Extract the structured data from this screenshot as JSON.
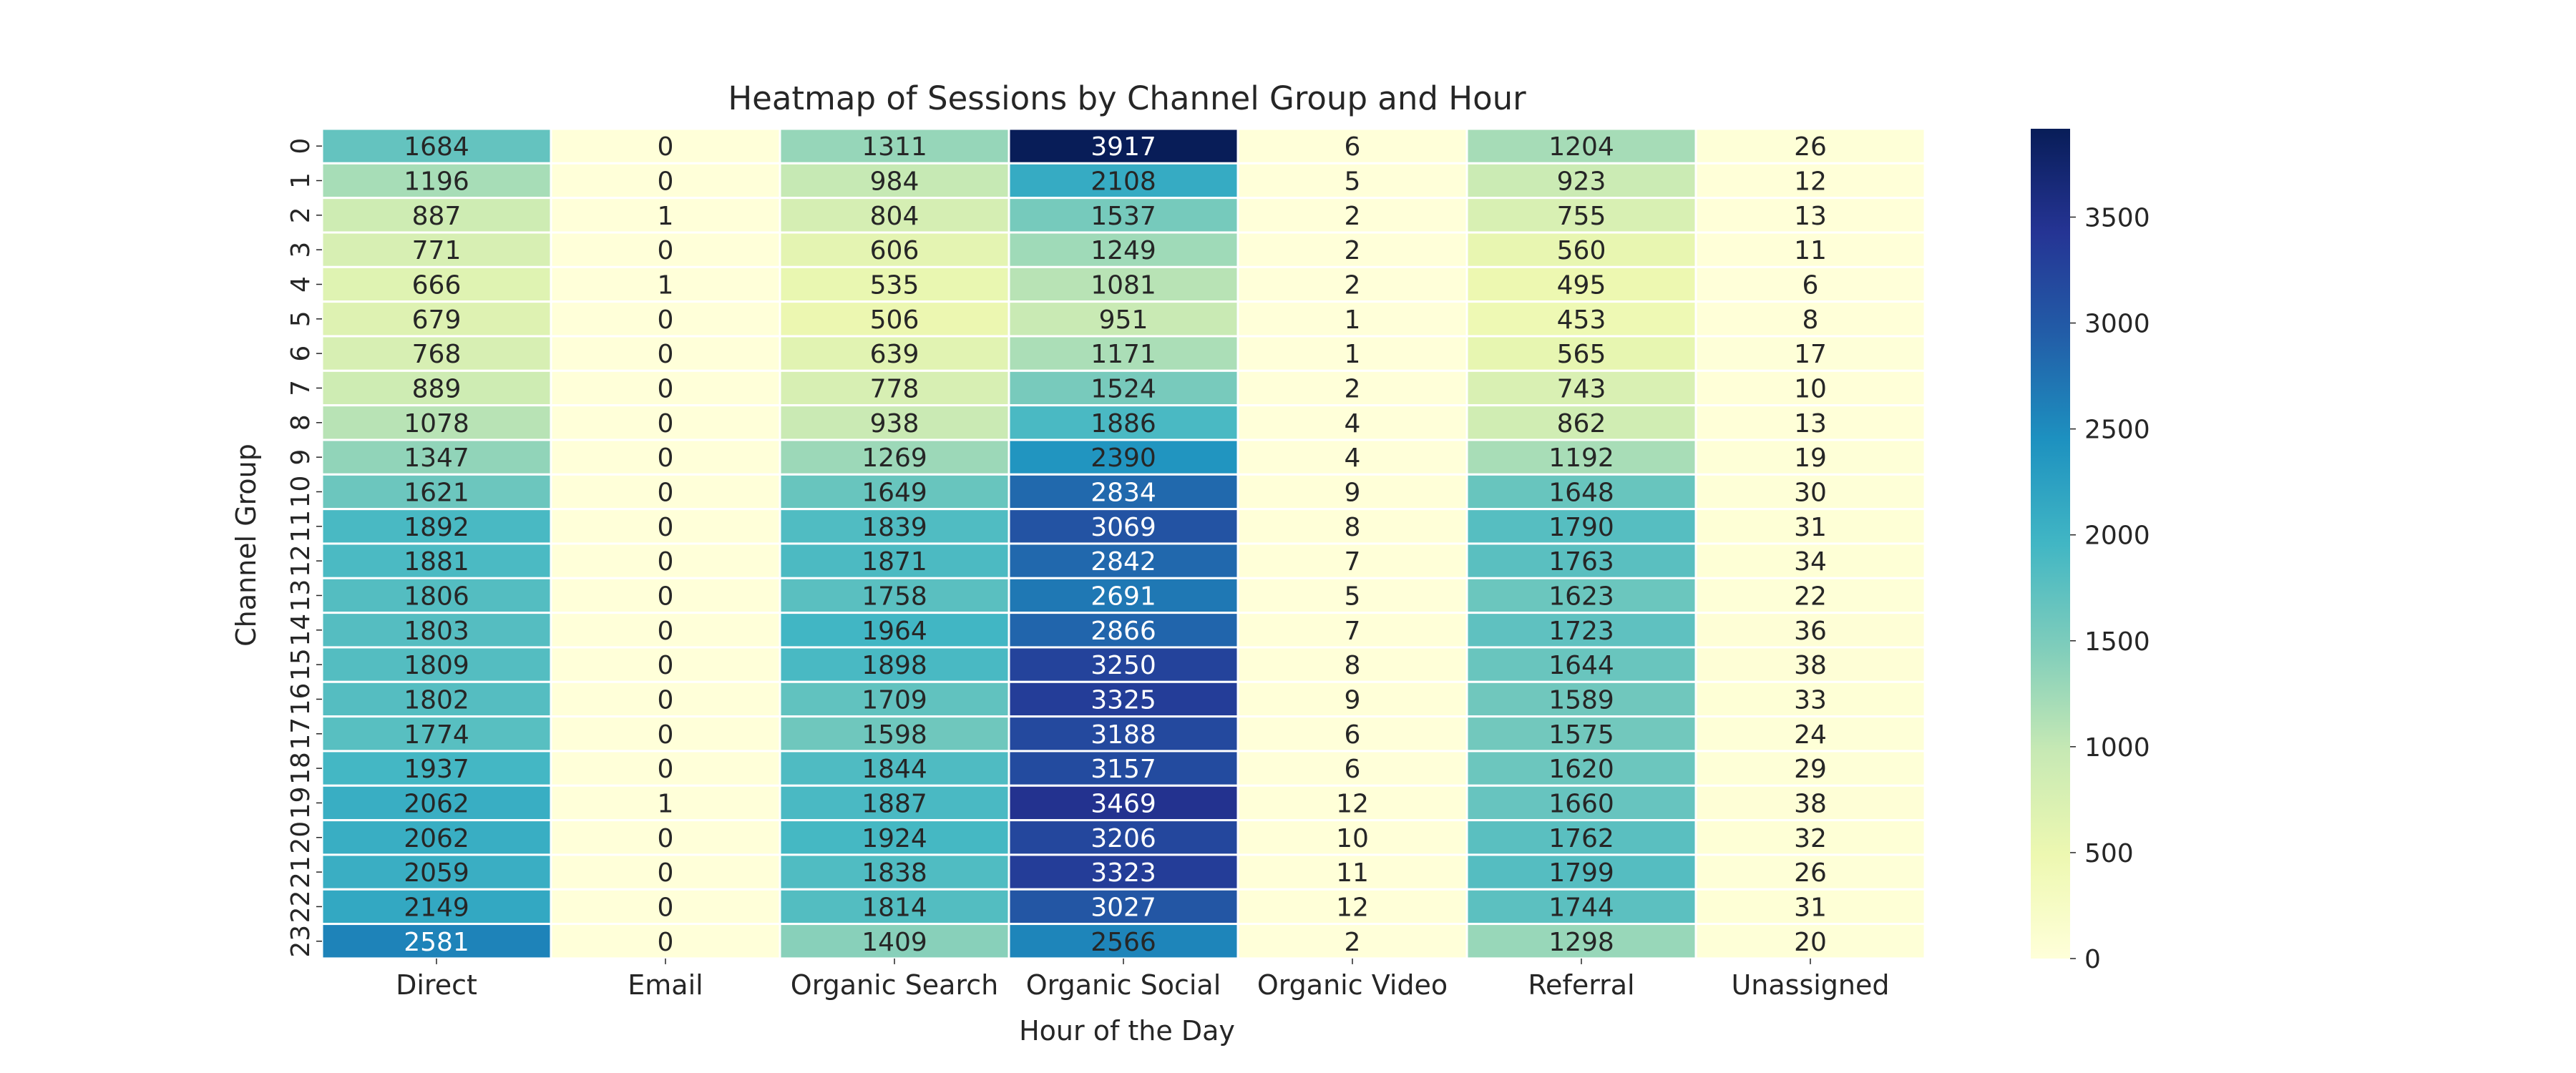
{
  "chart_data": {
    "type": "heatmap",
    "title": "Heatmap of Sessions by Channel Group and Hour",
    "xlabel": "Hour of the Day",
    "ylabel": "Channel Group",
    "columns": [
      "Direct",
      "Email",
      "Organic Search",
      "Organic Social",
      "Organic Video",
      "Referral",
      "Unassigned"
    ],
    "rows": [
      "0",
      "1",
      "2",
      "3",
      "4",
      "5",
      "6",
      "7",
      "8",
      "9",
      "10",
      "11",
      "12",
      "13",
      "14",
      "15",
      "16",
      "17",
      "18",
      "19",
      "20",
      "21",
      "22",
      "23"
    ],
    "values": [
      [
        1684,
        0,
        1311,
        3917,
        6,
        1204,
        26
      ],
      [
        1196,
        0,
        984,
        2108,
        5,
        923,
        12
      ],
      [
        887,
        1,
        804,
        1537,
        2,
        755,
        13
      ],
      [
        771,
        0,
        606,
        1249,
        2,
        560,
        11
      ],
      [
        666,
        1,
        535,
        1081,
        2,
        495,
        6
      ],
      [
        679,
        0,
        506,
        951,
        1,
        453,
        8
      ],
      [
        768,
        0,
        639,
        1171,
        1,
        565,
        17
      ],
      [
        889,
        0,
        778,
        1524,
        2,
        743,
        10
      ],
      [
        1078,
        0,
        938,
        1886,
        4,
        862,
        13
      ],
      [
        1347,
        0,
        1269,
        2390,
        4,
        1192,
        19
      ],
      [
        1621,
        0,
        1649,
        2834,
        9,
        1648,
        30
      ],
      [
        1892,
        0,
        1839,
        3069,
        8,
        1790,
        31
      ],
      [
        1881,
        0,
        1871,
        2842,
        7,
        1763,
        34
      ],
      [
        1806,
        0,
        1758,
        2691,
        5,
        1623,
        22
      ],
      [
        1803,
        0,
        1964,
        2866,
        7,
        1723,
        36
      ],
      [
        1809,
        0,
        1898,
        3250,
        8,
        1644,
        38
      ],
      [
        1802,
        0,
        1709,
        3325,
        9,
        1589,
        33
      ],
      [
        1774,
        0,
        1598,
        3188,
        6,
        1575,
        24
      ],
      [
        1937,
        0,
        1844,
        3157,
        6,
        1620,
        29
      ],
      [
        2062,
        1,
        1887,
        3469,
        12,
        1660,
        38
      ],
      [
        2062,
        0,
        1924,
        3206,
        10,
        1762,
        32
      ],
      [
        2059,
        0,
        1838,
        3323,
        11,
        1799,
        26
      ],
      [
        2149,
        0,
        1814,
        3027,
        12,
        1744,
        31
      ],
      [
        2581,
        0,
        1409,
        2566,
        2,
        1298,
        20
      ]
    ],
    "colorscale": "YlGnBu",
    "vmin": 0,
    "vmax": 3917,
    "colorbar_ticks": [
      0,
      500,
      1000,
      1500,
      2000,
      2500,
      3000,
      3500
    ],
    "annotated": true
  }
}
